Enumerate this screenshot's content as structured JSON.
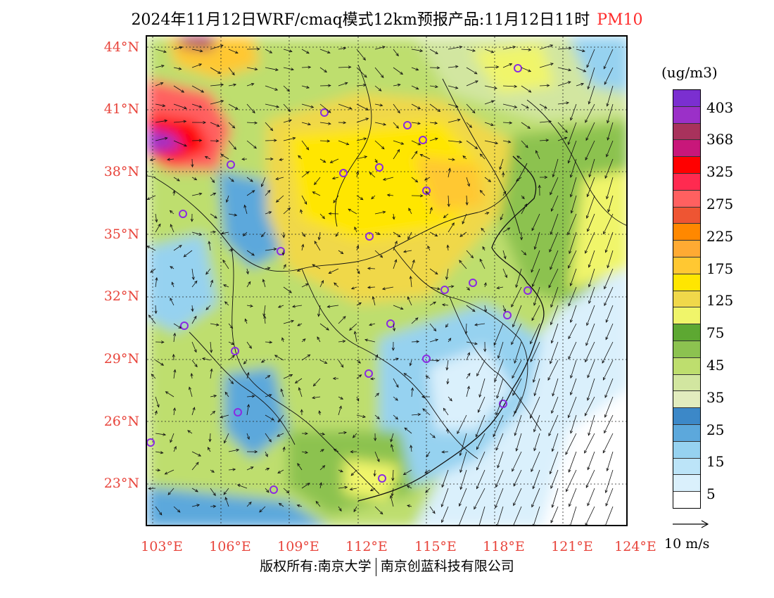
{
  "title": {
    "main": "2024年11月12日WRF/cmaq模式12km预报产品:11月12日11时",
    "pollutant": "PM10"
  },
  "axes": {
    "lat_labels": [
      "44°N",
      "41°N",
      "38°N",
      "35°N",
      "32°N",
      "29°N",
      "26°N",
      "23°N"
    ],
    "lon_labels": [
      "103°E",
      "106°E",
      "109°E",
      "112°E",
      "115°E",
      "118°E",
      "121°E",
      "124°E"
    ]
  },
  "legend": {
    "unit": "(ug/m3)",
    "colors": [
      "#7b2fd0",
      "#9b30c8",
      "#a8325c",
      "#c8177a",
      "#ff0000",
      "#ff2a50",
      "#ff6060",
      "#ee5533",
      "#ff8800",
      "#ffaa33",
      "#ffc832",
      "#ffe600",
      "#f0d84a",
      "#f0f56a",
      "#5da832",
      "#8cc250",
      "#bede6e",
      "#d2e6a0",
      "#e2ecbe",
      "#3c88c8",
      "#5ca8dc",
      "#96d2f0",
      "#bce4f8",
      "#daf0fc",
      "#ffffff"
    ],
    "labels": [
      "403",
      "368",
      "325",
      "275",
      "225",
      "175",
      "125",
      "75",
      "45",
      "35",
      "25",
      "15",
      "5"
    ]
  },
  "wind": {
    "reference_label": "10 m/s"
  },
  "footer": {
    "copyright_left": "版权所有:南京大学",
    "copyright_right": "南京创蓝科技有限公司"
  },
  "stations": [
    "station"
  ]
}
